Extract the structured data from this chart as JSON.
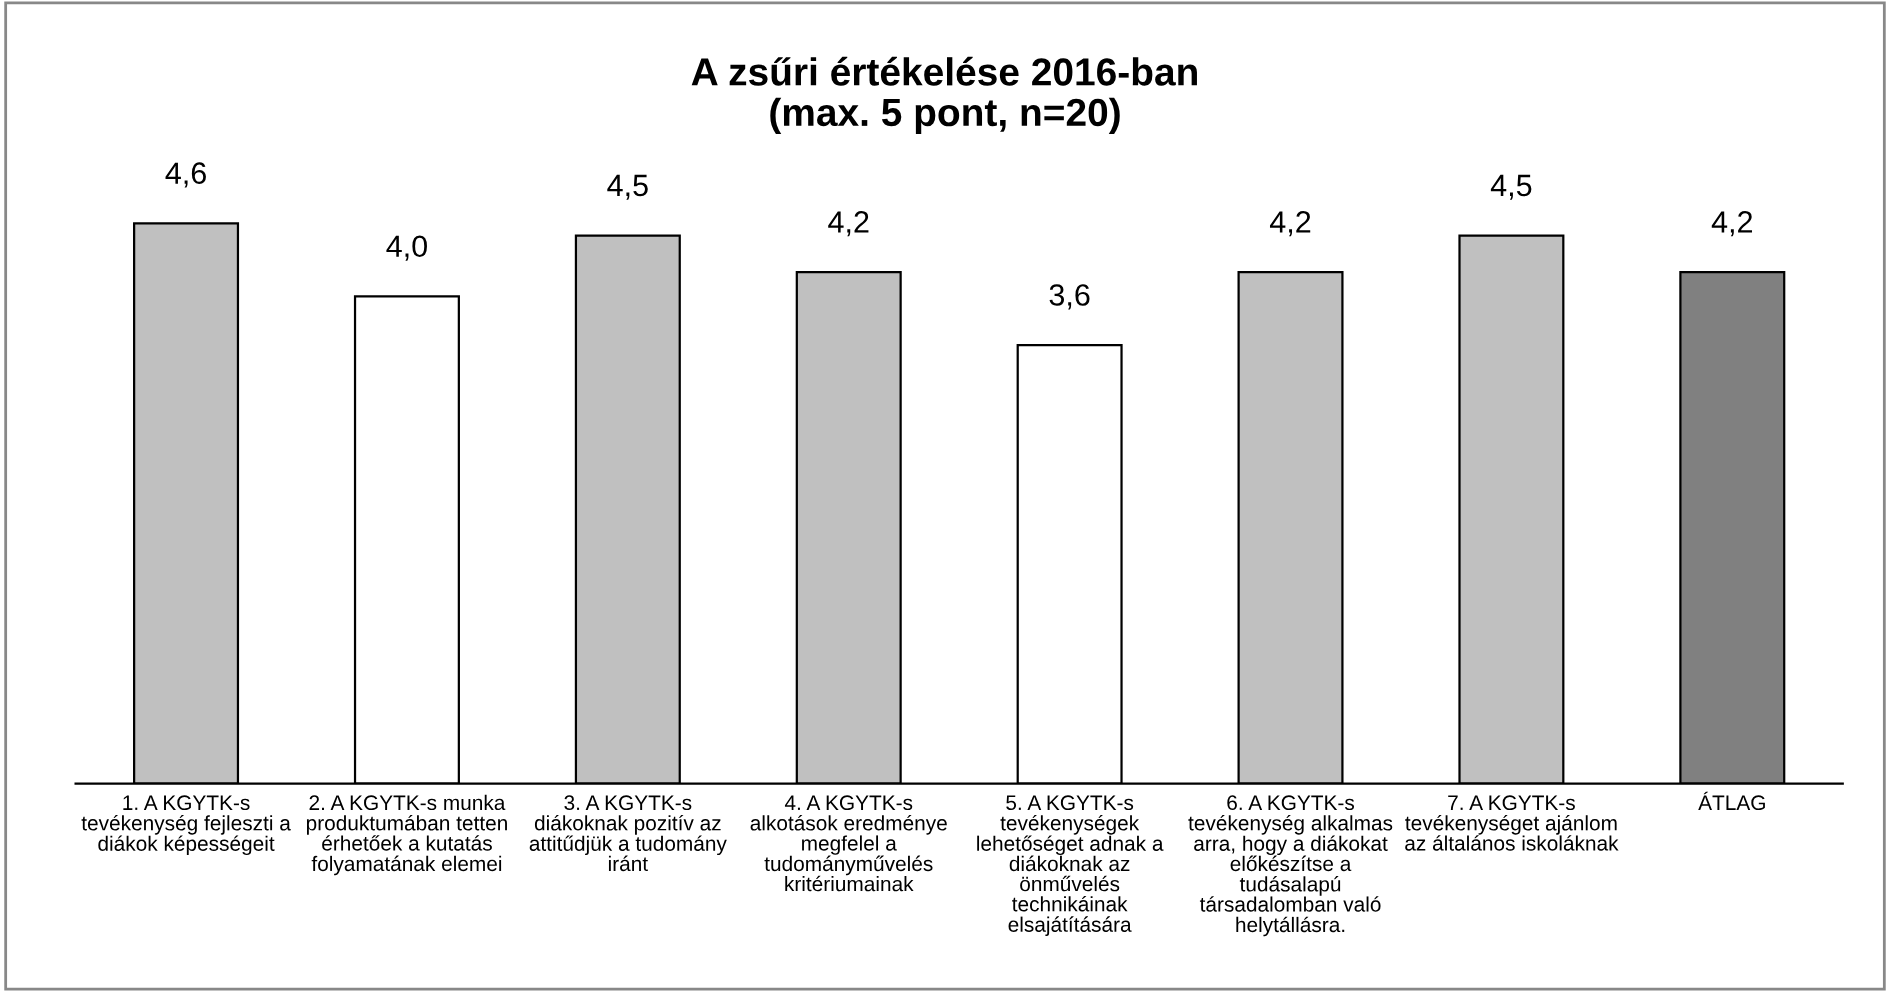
{
  "chart_data": {
    "type": "bar",
    "title": "A zsűri értékelése 2016-ban\n(max. 5 pont, n=20)",
    "categories": [
      "1. A KGYTK-s\ntevékenység fejleszti a\ndiákok képességeit",
      "2. A KGYTK-s munka\nproduktumában tetten\nérhetőek a kutatás\nfolyamatának elemei",
      "3. A KGYTK-s\ndiákoknak pozitív az\nattitűdjük a tudomány\niránt",
      "4. A KGYTK-s\nalkotások eredménye\nmegfelel a\ntudományművelés\nkritériumainak",
      "5. A KGYTK-s\ntevékenységek\nlehetőséget adnak a\ndiákoknak az\nönművelés\ntechnikáinak\nelsajátítására",
      "6. A KGYTK-s\ntevékenység alkalmas\narra, hogy a diákokat\nelőkészítse a\ntudásalapú\ntársadalomban való\nhelytállásra.",
      "7. A KGYTK-s\ntevékenységet ajánlom\naz általános iskoláknak",
      "ÁTLAG"
    ],
    "values": [
      4.6,
      4.0,
      4.5,
      4.2,
      3.6,
      4.2,
      4.5,
      4.2
    ],
    "value_labels": [
      "4,6",
      "4,0",
      "4,5",
      "4,2",
      "3,6",
      "4,2",
      "4,5",
      "4,2"
    ],
    "colors": [
      "#c0c0c0",
      "#ffffff",
      "#c0c0c0",
      "#c0c0c0",
      "#ffffff",
      "#c0c0c0",
      "#c0c0c0",
      "#808080"
    ],
    "grid": false,
    "legend": false
  }
}
